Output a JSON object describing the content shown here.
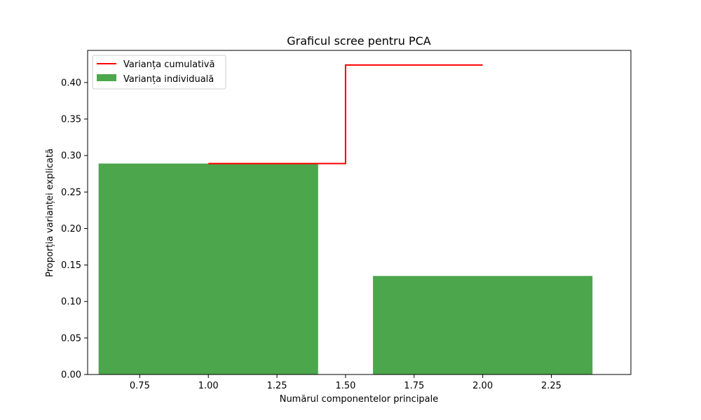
{
  "chart_data": {
    "type": "bar",
    "title": "Graficul scree pentru PCA",
    "xlabel": "Numărul componentelor principale",
    "ylabel": "Proporția varianței explicată",
    "xlim": [
      0.56,
      2.54
    ],
    "ylim": [
      0,
      0.444
    ],
    "x_ticks": [
      0.75,
      1.0,
      1.25,
      1.5,
      1.75,
      2.0,
      2.25
    ],
    "x_tick_labels": [
      "0.75",
      "1.00",
      "1.25",
      "1.50",
      "1.75",
      "2.00",
      "2.25"
    ],
    "y_ticks": [
      0,
      0.05,
      0.1,
      0.15,
      0.2,
      0.25,
      0.3,
      0.35,
      0.4
    ],
    "y_tick_labels": [
      "0.00",
      "0.05",
      "0.10",
      "0.15",
      "0.20",
      "0.25",
      "0.30",
      "0.35",
      "0.40"
    ],
    "grid": false,
    "legend_position": "top-left",
    "bars": {
      "name": "Varianța individuală",
      "color": "#4ca64c",
      "x": [
        1,
        2
      ],
      "width": 0.8,
      "values": [
        0.289,
        0.135
      ]
    },
    "step": {
      "name": "Varianța cumulativă",
      "color": "#ff0000",
      "where": "mid",
      "x": [
        1,
        2
      ],
      "values": [
        0.289,
        0.424
      ]
    }
  }
}
